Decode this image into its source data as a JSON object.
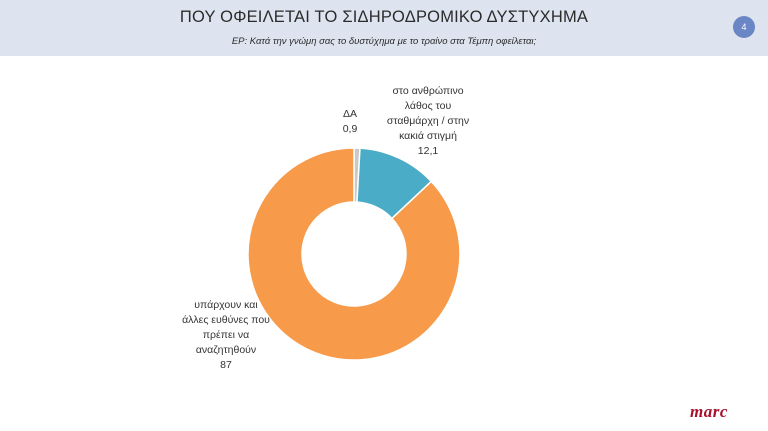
{
  "header": {
    "title": "ΠΟΥ ΟΦΕΙΛΕΤΑΙ ΤΟ ΣΙΔΗΡΟΔΡΟΜΙΚΟ ΔΥΣΤΥΧΗΜΑ",
    "subtitle": "ΕΡ: Κατά την γνώμη σας το δυστύχημα με το τραίνο στα Τέμπη οφείλεται;",
    "page_number": "4"
  },
  "logo_text": "marc",
  "colors": {
    "header_bg": "#dde4ef",
    "badge": "#6a86c4",
    "slice_other": "#f79a4a",
    "slice_human": "#4aacc6",
    "slice_da": "#c9c9c9",
    "logo": "#a8102c"
  },
  "chart_data": {
    "type": "pie",
    "style": "donut",
    "title": "",
    "series": [
      {
        "values": [
          0.9,
          12.1,
          87
        ],
        "labels": [
          "ΔΑ",
          "στο ανθρώπινο λάθος του σταθμάρχη / στην κακιά στιγμή",
          "υπάρχουν και άλλες ευθύνες που πρέπει να αναζητηθούν"
        ]
      }
    ],
    "slices": [
      {
        "category": "ΔΑ",
        "value": 0.9,
        "value_label": "0,9",
        "color": "#c9c9c9"
      },
      {
        "category": "στο ανθρώπινο λάθος του σταθμάρχη / στην κακιά στιγμή",
        "value": 12.1,
        "value_label": "12,1",
        "color": "#4aacc6"
      },
      {
        "category": "υπάρχουν και άλλες ευθύνες που πρέπει να αναζητηθούν",
        "value": 87,
        "value_label": "87",
        "color": "#f79a4a"
      }
    ],
    "legend": "none",
    "start": "top",
    "direction": "clockwise",
    "data_labels": {
      "da": {
        "lines": [
          "ΔΑ"
        ],
        "value": "0,9"
      },
      "human": {
        "lines": [
          "στο ανθρώπινο",
          "λάθος του",
          "σταθμάρχη / στην",
          "κακιά στιγμή"
        ],
        "value": "12,1"
      },
      "other": {
        "lines": [
          "υπάρχουν και",
          "άλλες ευθύνες που",
          "πρέπει να",
          "αναζητηθούν"
        ],
        "value": "87"
      }
    }
  }
}
